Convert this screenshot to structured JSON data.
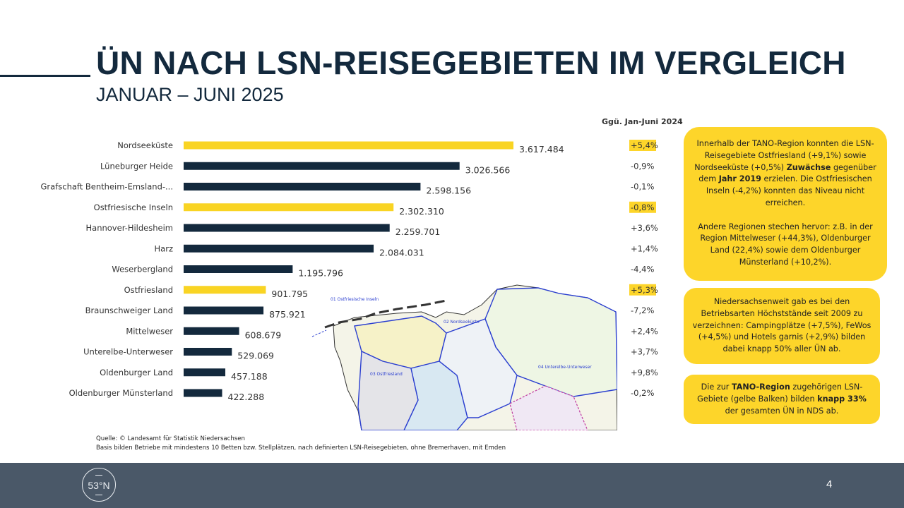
{
  "header": {
    "title": "ÜN NACH LSN-REISEGEBIETEN IM VERGLEICH",
    "subtitle": "JANUAR – JUNI 2025"
  },
  "colors": {
    "navy": "#13293d",
    "yellow": "#f9d423",
    "highlight": "#fdd52a",
    "footer": "#4a5868"
  },
  "chart_data": {
    "type": "bar",
    "orientation": "horizontal",
    "title": "ÜN nach LSN-Reisegebieten Januar – Juni 2025",
    "xlabel": "",
    "ylabel": "",
    "xlim": [
      0,
      3617484
    ],
    "grid": false,
    "comparison_header": "Ggü. Jan-Juni 2024",
    "categories": [
      "Nordseeküste",
      "Lüneburger Heide",
      "Grafschaft Bentheim-Emsland-...",
      "Ostfriesische Inseln",
      "Hannover-Hildesheim",
      "Harz",
      "Weserbergland",
      "Ostfriesland",
      "Braunschweiger Land",
      "Mittelweser",
      "Unterelbe-Unterweser",
      "Oldenburger Land",
      "Oldenburger Münsterland"
    ],
    "values": [
      3617484,
      3026566,
      2598156,
      2302310,
      2259701,
      2084031,
      1195796,
      901795,
      875921,
      608679,
      529069,
      457188,
      422288
    ],
    "value_labels": [
      "3.617.484",
      "3.026.566",
      "2.598.156",
      "2.302.310",
      "2.259.701",
      "2.084.031",
      "1.195.796",
      "901.795",
      "875.921",
      "608.679",
      "529.069",
      "457.188",
      "422.288"
    ],
    "tano_region": [
      true,
      false,
      false,
      true,
      false,
      false,
      false,
      true,
      false,
      false,
      false,
      false,
      false
    ],
    "change_vs_2024": [
      "+5,4%",
      "-0,9%",
      "-0,1%",
      "-0,8%",
      "+3,6%",
      "+1,4%",
      "-4,4%",
      "+5,3%",
      "-7,2%",
      "+2,4%",
      "+3,7%",
      "+9,8%",
      "-0,2%"
    ],
    "legend": "gelbe Balken = TANO-Region"
  },
  "map": {
    "labels": [
      "01 Ostfriesische Inseln",
      "02 Nordseeküste",
      "03 Ostfriesland",
      "04 Unterelbe-Unterweser"
    ]
  },
  "info_boxes": {
    "box1": {
      "p1_a": "Innerhalb der TANO-Region konnten die LSN-Reisegebiete Ostfriesland (+9,1%) sowie Nordseeküste (+0,5%) ",
      "p1_b": "Zuwächse",
      "p1_c": " gegenüber dem ",
      "p1_d": "Jahr 2019",
      "p1_e": " erzielen.  Die Ostfriesischen Inseln (-4,2%) konnten das Niveau nicht erreichen.",
      "p2": "Andere Regionen stechen hervor: z.B. in der Region Mittelweser (+44,3%), Oldenburger Land (22,4%) sowie dem Oldenburger Münsterland (+10,2%)."
    },
    "box2": {
      "text": "Niedersachsenweit gab es bei den Betriebsarten Höchststände seit 2009 zu verzeichnen: Campingplätze (+7,5%), FeWos (+4,5%) und Hotels garnis (+2,9%) bilden dabei knapp 50% aller ÜN ab."
    },
    "box3": {
      "a": "Die zur ",
      "b": "TANO-Region",
      "c": " zugehörigen LSN-Gebiete (gelbe Balken) bilden ",
      "d": "knapp 33%",
      "e": " der gesamten ÜN in NDS ab."
    }
  },
  "source": {
    "line1": "Quelle: © Landesamt für Statistik Niedersachsen",
    "line2": "Basis bilden Betriebe mit mindestens 10 Betten bzw. Stellplätzen, nach definierten LSN-Reisegebieten, ohne Bremerhaven, mit Emden"
  },
  "footer": {
    "logo_text": "53°N",
    "page_number": "4"
  }
}
